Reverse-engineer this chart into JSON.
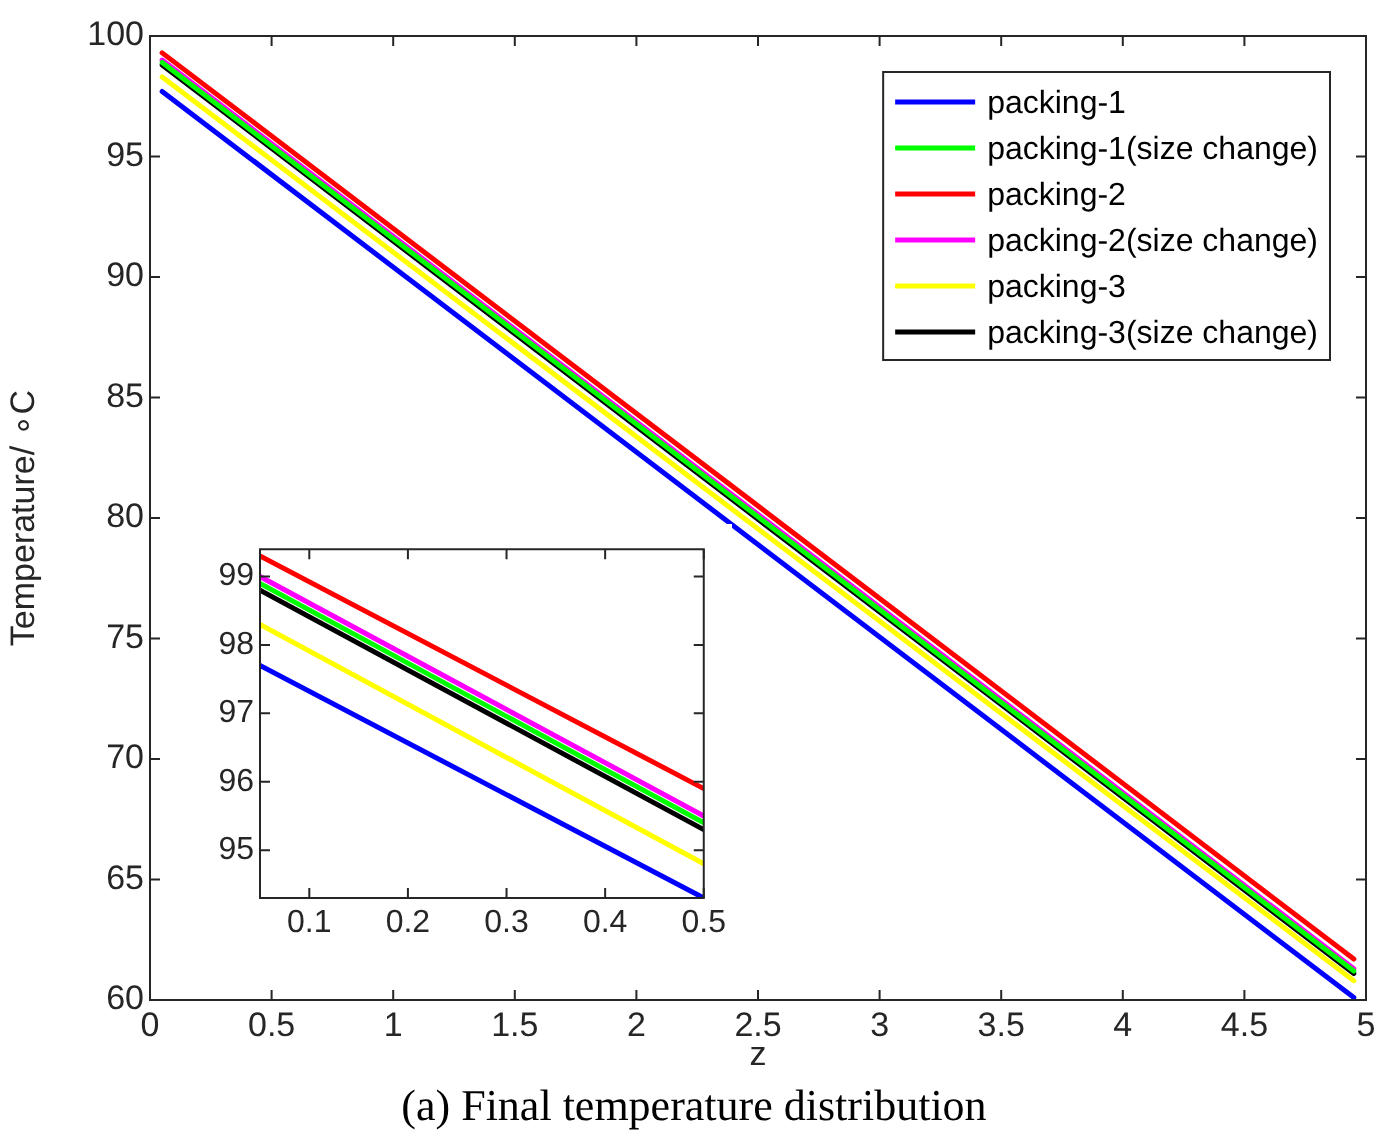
{
  "chart_data": [
    {
      "type": "line",
      "xlabel": "z",
      "ylabel": "Temperature/ ∘C",
      "x": [
        0.05,
        4.95
      ],
      "xlim": [
        0,
        5
      ],
      "xticks": [
        0,
        0.5,
        1,
        1.5,
        2,
        2.5,
        3,
        3.5,
        4,
        4.5,
        5
      ],
      "ylim": [
        60,
        100
      ],
      "yticks": [
        60,
        65,
        70,
        75,
        80,
        85,
        90,
        95,
        100
      ],
      "legend": "top right",
      "grid": false,
      "annotations": [
        "(a) Final temperature distribution"
      ],
      "series": [
        {
          "name": "packing-1",
          "color": "#0000ff",
          "values": [
            97.7,
            60.1
          ]
        },
        {
          "name": "packing-1(size change)",
          "color": "#00ff00",
          "values": [
            98.9,
            61.2
          ]
        },
        {
          "name": "packing-2",
          "color": "#ff0000",
          "values": [
            99.3,
            61.7
          ]
        },
        {
          "name": "packing-2(size change)",
          "color": "#ff00ff",
          "values": [
            99.0,
            61.3
          ]
        },
        {
          "name": "packing-3",
          "color": "#ffff00",
          "values": [
            98.3,
            60.8
          ]
        },
        {
          "name": "packing-3(size change)",
          "color": "#000000",
          "values": [
            98.8,
            61.1
          ]
        }
      ]
    },
    {
      "type": "line",
      "x": [
        0.05,
        0.5
      ],
      "xlim": [
        0.05,
        0.5
      ],
      "xticks": [
        0.1,
        0.2,
        0.3,
        0.4,
        0.5
      ],
      "ylim": [
        94.3,
        99.4
      ],
      "yticks": [
        95,
        96,
        97,
        98,
        99
      ],
      "grid": false,
      "series": [
        {
          "color": "#0000ff",
          "values": [
            97.7,
            94.3
          ]
        },
        {
          "color": "#00ff00",
          "values": [
            98.9,
            95.4
          ]
        },
        {
          "color": "#ff0000",
          "values": [
            99.3,
            95.9
          ]
        },
        {
          "color": "#ff00ff",
          "values": [
            99.0,
            95.5
          ]
        },
        {
          "color": "#ffff00",
          "values": [
            98.3,
            94.8
          ]
        },
        {
          "color": "#000000",
          "values": [
            98.8,
            95.3
          ]
        }
      ]
    }
  ]
}
